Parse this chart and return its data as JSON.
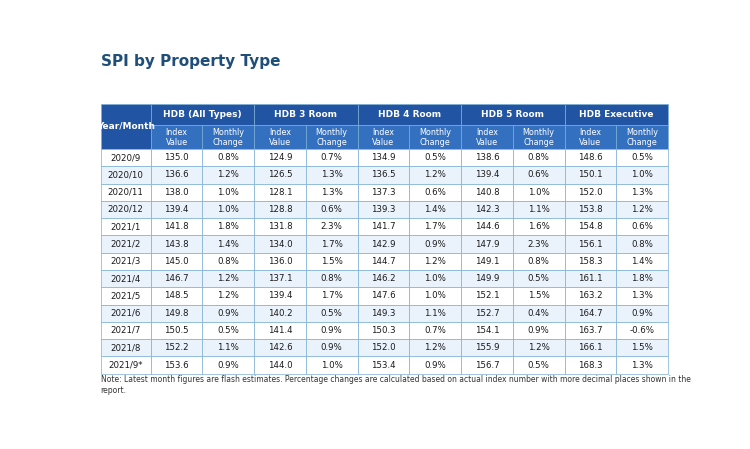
{
  "title": "SPI by Property Type",
  "col_groups": [
    {
      "label": "HDB (All Types)",
      "span": 2
    },
    {
      "label": "HDB 3 Room",
      "span": 2
    },
    {
      "label": "HDB 4 Room",
      "span": 2
    },
    {
      "label": "HDB 5 Room",
      "span": 2
    },
    {
      "label": "HDB Executive",
      "span": 2
    }
  ],
  "sub_headers": [
    "Index\nValue",
    "Monthly\nChange",
    "Index\nValue",
    "Monthly\nChange",
    "Index\nValue",
    "Monthly\nChange",
    "Index\nValue",
    "Monthly\nChange",
    "Index\nValue",
    "Monthly\nChange"
  ],
  "rows": [
    [
      "2020/9",
      "135.0",
      "0.8%",
      "124.9",
      "0.7%",
      "134.9",
      "0.5%",
      "138.6",
      "0.8%",
      "148.6",
      "0.5%"
    ],
    [
      "2020/10",
      "136.6",
      "1.2%",
      "126.5",
      "1.3%",
      "136.5",
      "1.2%",
      "139.4",
      "0.6%",
      "150.1",
      "1.0%"
    ],
    [
      "2020/11",
      "138.0",
      "1.0%",
      "128.1",
      "1.3%",
      "137.3",
      "0.6%",
      "140.8",
      "1.0%",
      "152.0",
      "1.3%"
    ],
    [
      "2020/12",
      "139.4",
      "1.0%",
      "128.8",
      "0.6%",
      "139.3",
      "1.4%",
      "142.3",
      "1.1%",
      "153.8",
      "1.2%"
    ],
    [
      "2021/1",
      "141.8",
      "1.8%",
      "131.8",
      "2.3%",
      "141.7",
      "1.7%",
      "144.6",
      "1.6%",
      "154.8",
      "0.6%"
    ],
    [
      "2021/2",
      "143.8",
      "1.4%",
      "134.0",
      "1.7%",
      "142.9",
      "0.9%",
      "147.9",
      "2.3%",
      "156.1",
      "0.8%"
    ],
    [
      "2021/3",
      "145.0",
      "0.8%",
      "136.0",
      "1.5%",
      "144.7",
      "1.2%",
      "149.1",
      "0.8%",
      "158.3",
      "1.4%"
    ],
    [
      "2021/4",
      "146.7",
      "1.2%",
      "137.1",
      "0.8%",
      "146.2",
      "1.0%",
      "149.9",
      "0.5%",
      "161.1",
      "1.8%"
    ],
    [
      "2021/5",
      "148.5",
      "1.2%",
      "139.4",
      "1.7%",
      "147.6",
      "1.0%",
      "152.1",
      "1.5%",
      "163.2",
      "1.3%"
    ],
    [
      "2021/6",
      "149.8",
      "0.9%",
      "140.2",
      "0.5%",
      "149.3",
      "1.1%",
      "152.7",
      "0.4%",
      "164.7",
      "0.9%"
    ],
    [
      "2021/7",
      "150.5",
      "0.5%",
      "141.4",
      "0.9%",
      "150.3",
      "0.7%",
      "154.1",
      "0.9%",
      "163.7",
      "-0.6%"
    ],
    [
      "2021/8",
      "152.2",
      "1.1%",
      "142.6",
      "0.9%",
      "152.0",
      "1.2%",
      "155.9",
      "1.2%",
      "166.1",
      "1.5%"
    ],
    [
      "2021/9*",
      "153.6",
      "0.9%",
      "144.0",
      "1.0%",
      "153.4",
      "0.9%",
      "156.7",
      "0.5%",
      "168.3",
      "1.3%"
    ]
  ],
  "note": "Note: Latest month figures are flash estimates. Percentage changes are calculated based on actual index number with more decimal places shown in the\nreport.",
  "header_bg": "#2155A3",
  "header_text": "#FFFFFF",
  "subheader_bg": "#3470C0",
  "subheader_text": "#FFFFFF",
  "row_odd_bg": "#FFFFFF",
  "row_even_bg": "#EAF2FB",
  "row_text": "#1a1a1a",
  "border_color": "#7BAFD4",
  "title_color": "#1F4E79",
  "background_color": "#FFFFFF",
  "title_fontsize": 11,
  "group_header_fontsize": 6.5,
  "sub_header_fontsize": 5.8,
  "data_fontsize": 6.2,
  "note_fontsize": 5.5
}
